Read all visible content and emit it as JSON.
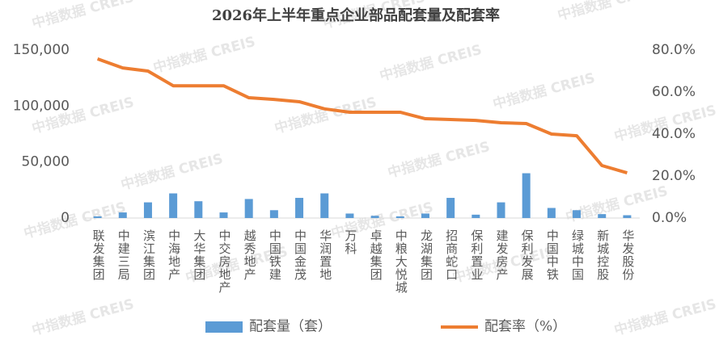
{
  "chart_data": {
    "type": "bar-line",
    "title": "2026年上半年重点企业部品配套量及配套率",
    "watermark": "中指数据 CREIS",
    "categories": [
      "联发集团",
      "中建三局",
      "滨江集团",
      "中海地产",
      "大华集团",
      "中交房地产",
      "越秀地产",
      "中国铁建",
      "中国金茂",
      "华润置地",
      "万科",
      "卓越集团",
      "中粮大悦城",
      "龙湖集团",
      "招商蛇口",
      "保利置业",
      "建发房产",
      "保利发展",
      "中国中铁",
      "绿城中国",
      "新城控股",
      "华发股份"
    ],
    "series": [
      {
        "name": "配套量（套）",
        "color": "#5b9bd5",
        "type": "bar",
        "axis": "y",
        "values": [
          1500,
          5000,
          14000,
          22000,
          15000,
          5000,
          17000,
          7000,
          18000,
          22000,
          4000,
          2000,
          1500,
          4000,
          18000,
          3000,
          14000,
          40000,
          9000,
          7000,
          3500,
          2500
        ]
      },
      {
        "name": "配套率（%）",
        "color": "#ed7d31",
        "type": "line",
        "axis": "y2",
        "values": [
          75.8,
          71.5,
          70,
          63,
          63,
          63,
          57.3,
          56.5,
          55.4,
          52,
          50.4,
          50.4,
          50.4,
          47.3,
          46.9,
          46.5,
          45.4,
          45,
          40,
          39.2,
          25,
          21.5
        ]
      }
    ],
    "ylim": [
      0,
      150000
    ],
    "yticks": [
      {
        "value": 0,
        "label": "0"
      },
      {
        "value": 50000,
        "label": "50,000"
      },
      {
        "value": 100000,
        "label": "100,000"
      },
      {
        "value": 150000,
        "label": "150,000"
      }
    ],
    "y2lim": [
      0,
      80
    ],
    "y2ticks": [
      {
        "value": 0,
        "label": "0.0%"
      },
      {
        "value": 20,
        "label": "20.0%"
      },
      {
        "value": 40,
        "label": "40.0%"
      },
      {
        "value": 60,
        "label": "60.0%"
      },
      {
        "value": 80,
        "label": "80.0%"
      }
    ],
    "legend": "bottom"
  }
}
